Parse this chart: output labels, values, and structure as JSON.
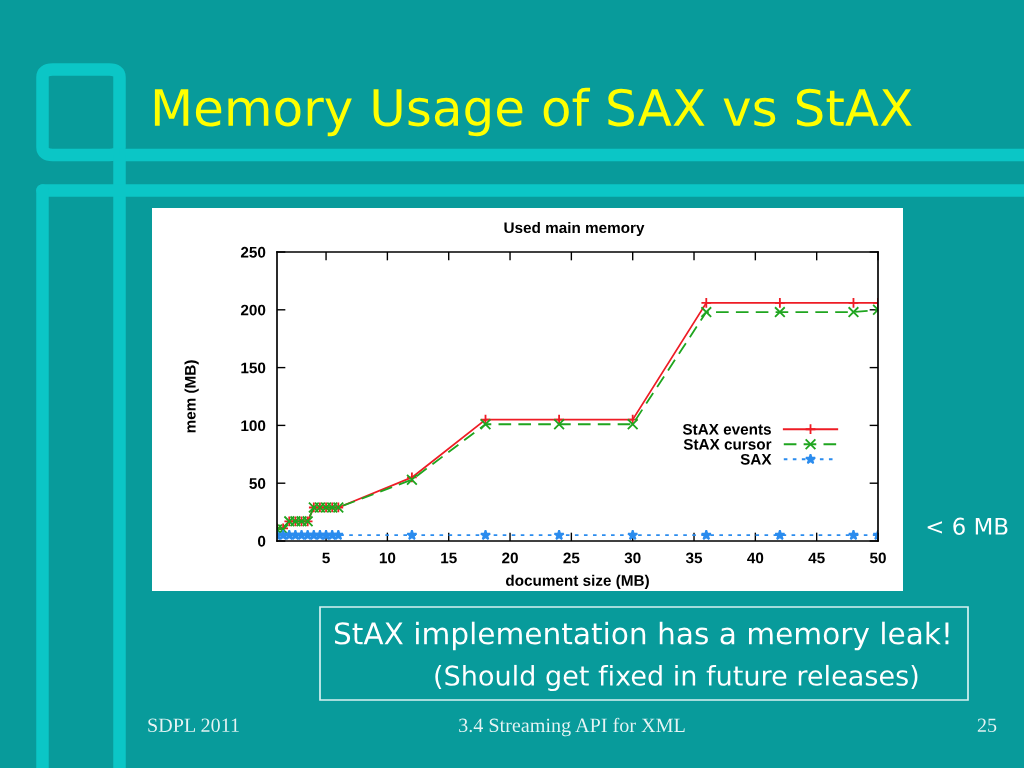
{
  "chart_data": {
    "type": "line",
    "title": "Memory Usage of SAX vs StAX",
    "subtitle": "Used main memory",
    "xlabel": "document size (MB)",
    "ylabel": "mem (MB)",
    "x": [
      1,
      1.5,
      2,
      2.5,
      3,
      3.5,
      4,
      4.5,
      5,
      5.5,
      6,
      12,
      18,
      24,
      30,
      36,
      42,
      48,
      50
    ],
    "series": [
      {
        "name": "StAX events",
        "color": "#ee1c25",
        "marker": "plus",
        "line_style": "solid",
        "values": [
          11,
          11,
          17,
          17,
          17,
          17,
          29,
          29,
          29,
          29,
          29,
          55,
          105,
          105,
          105,
          206,
          206,
          206,
          206
        ]
      },
      {
        "name": "StAX cursor",
        "color": "#1fa51f",
        "marker": "cross",
        "line_style": "dashed",
        "values": [
          10,
          10,
          17,
          17,
          17,
          17,
          29,
          29,
          29,
          29,
          29,
          53,
          101,
          101,
          101,
          198,
          198,
          198,
          200
        ]
      },
      {
        "name": "SAX",
        "color": "#2b8cee",
        "marker": "star",
        "line_style": "dotted",
        "values": [
          5,
          5,
          5,
          5,
          5,
          5,
          5,
          5,
          5,
          5,
          5,
          5,
          5,
          5,
          5,
          5,
          5,
          5,
          5
        ]
      }
    ],
    "xlim": [
      1,
      50
    ],
    "ylim": [
      0,
      250
    ],
    "xticks": [
      5,
      10,
      15,
      20,
      25,
      30,
      35,
      40,
      45,
      50
    ],
    "yticks": [
      0,
      50,
      100,
      150,
      200,
      250
    ],
    "grid": false,
    "legend": "right",
    "annotations": [
      {
        "text": "< 6 MB",
        "x": 50,
        "y": 5
      },
      "StAX implementation has a memory leak!",
      "(Should get fixed in future releases)",
      "SDPL 2011",
      "3.4 Streaming API for XML",
      "25"
    ]
  }
}
